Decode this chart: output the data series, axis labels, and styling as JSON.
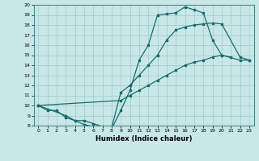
{
  "title": "",
  "xlabel": "Humidex (Indice chaleur)",
  "bg_color": "#c8e8e8",
  "grid_color": "#a0c8c8",
  "line_color": "#1a6b6b",
  "xlim": [
    -0.5,
    23.5
  ],
  "ylim": [
    8,
    20
  ],
  "xticks": [
    0,
    1,
    2,
    3,
    4,
    5,
    6,
    7,
    8,
    9,
    10,
    11,
    12,
    13,
    14,
    15,
    16,
    17,
    18,
    19,
    20,
    21,
    22,
    23
  ],
  "yticks": [
    8,
    9,
    10,
    11,
    12,
    13,
    14,
    15,
    16,
    17,
    18,
    19,
    20
  ],
  "line1_x": [
    0,
    1,
    2,
    3,
    4,
    5,
    6,
    7,
    8,
    9,
    10,
    11,
    12,
    13,
    14,
    15,
    16,
    17,
    18,
    19,
    20,
    21
  ],
  "line1_y": [
    10,
    9.5,
    9.5,
    8.8,
    8.5,
    8.1,
    7.9,
    7.7,
    7.7,
    9.5,
    11.5,
    14.5,
    16.0,
    19.0,
    19.1,
    19.2,
    19.8,
    19.5,
    19.2,
    16.5,
    15.0,
    14.8
  ],
  "line2_x": [
    0,
    3,
    4,
    5,
    6,
    7,
    8,
    9,
    10,
    11,
    12,
    13,
    14,
    15,
    16,
    17,
    18,
    19,
    20,
    22,
    23
  ],
  "line2_y": [
    10,
    9.0,
    8.5,
    8.5,
    8.2,
    7.9,
    7.8,
    11.3,
    12.0,
    13.0,
    14.0,
    15.0,
    16.5,
    17.5,
    17.8,
    18.0,
    18.1,
    18.2,
    18.1,
    14.8,
    14.5
  ],
  "line3_x": [
    0,
    9,
    10,
    11,
    12,
    13,
    14,
    15,
    16,
    17,
    18,
    19,
    20,
    22,
    23
  ],
  "line3_y": [
    10,
    10.5,
    11.0,
    11.5,
    12.0,
    12.5,
    13.0,
    13.5,
    14.0,
    14.3,
    14.5,
    14.8,
    15.0,
    14.5,
    14.5
  ]
}
